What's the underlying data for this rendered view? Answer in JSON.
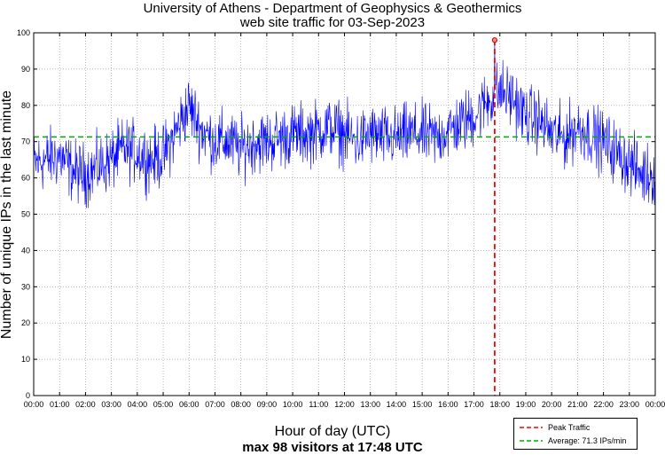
{
  "chart_data": {
    "type": "line",
    "title": [
      "University of Athens - Department of Geophysics & Geothermics",
      "web site traffic for 03-Sep-2023"
    ],
    "xlabel": "Hour of day (UTC)",
    "subtitle": "max 98 visitors at 17:48 UTC",
    "ylabel": "Number of unique IPs in the last minute",
    "xlim": [
      0,
      24
    ],
    "ylim": [
      0,
      100
    ],
    "yticks": [
      0,
      10,
      20,
      30,
      40,
      50,
      60,
      70,
      80,
      90,
      100
    ],
    "xtick_labels": [
      "00:00",
      "01:00",
      "02:00",
      "03:00",
      "04:00",
      "05:00",
      "06:00",
      "07:00",
      "08:00",
      "09:00",
      "10:00",
      "11:00",
      "12:00",
      "13:00",
      "14:00",
      "15:00",
      "16:00",
      "17:00",
      "18:00",
      "19:00",
      "20:00",
      "21:00",
      "22:00",
      "23:00",
      "00:00"
    ],
    "series": [
      {
        "name": "traffic",
        "color": "#0000ff",
        "trend_hours": [
          0,
          0.5,
          1,
          1.5,
          2,
          2.5,
          3,
          3.5,
          4,
          4.5,
          5,
          5.5,
          6,
          6.5,
          7,
          7.5,
          8,
          8.5,
          9,
          9.5,
          10,
          10.5,
          11,
          11.5,
          12,
          12.5,
          13,
          13.5,
          14,
          14.5,
          15,
          15.5,
          16,
          16.5,
          17,
          17.5,
          18,
          18.5,
          19,
          19.5,
          20,
          20.5,
          21,
          21.5,
          22,
          22.5,
          23,
          23.5,
          24
        ],
        "trend_values": [
          64,
          65,
          66,
          62,
          61,
          63,
          65,
          68,
          67,
          65,
          66,
          73,
          80,
          73,
          70,
          70,
          68,
          70,
          70,
          71,
          72,
          72,
          73,
          74,
          72,
          70,
          72,
          71,
          71,
          72,
          72,
          71,
          73,
          75,
          77,
          81,
          84,
          82,
          77,
          76,
          72,
          71,
          74,
          72,
          70,
          67,
          64,
          61,
          61
        ],
        "spread": 6
      }
    ],
    "peak": {
      "hour": 17.8,
      "value": 98,
      "label": "Peak Traffic",
      "color": "#ff0000"
    },
    "average": {
      "value": 71.3,
      "label": "Average: 71.3 IPs/min",
      "color": "#00aa00"
    }
  }
}
